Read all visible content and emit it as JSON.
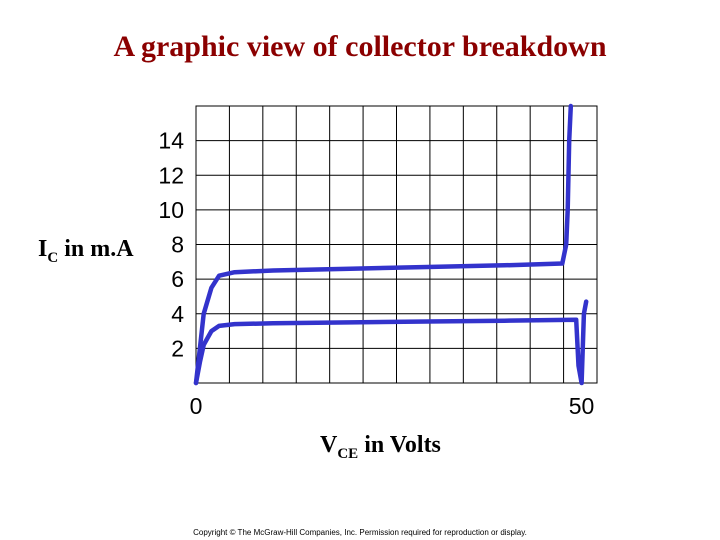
{
  "title": "A graphic view of collector breakdown",
  "copyright": "Copyright © The McGraw-Hill Companies, Inc. Permission required for reproduction or display.",
  "colors": {
    "title": "#8b0000",
    "curve": "#3333cc",
    "grid": "#000000"
  },
  "chart_data": {
    "type": "line",
    "title": "A graphic view of collector breakdown",
    "ylabel": {
      "main": "I",
      "sub": "C",
      "rest": " in m.A"
    },
    "xlabel": {
      "main": "V",
      "sub": "CE",
      "rest": " in Volts"
    },
    "yticks": [
      "14",
      "12",
      "10",
      "8",
      "6",
      "4",
      "2"
    ],
    "xticks": [
      "0",
      "50"
    ],
    "ylim": [
      0,
      16
    ],
    "xlim": [
      0,
      52
    ],
    "grid": true,
    "series": [
      {
        "x": [
          0,
          0.5,
          1,
          2,
          3,
          5,
          10,
          20,
          30,
          40,
          47.5,
          48,
          48.2,
          48.4,
          48.6
        ],
        "y": [
          0,
          2,
          4,
          5.5,
          6.2,
          6.4,
          6.5,
          6.6,
          6.7,
          6.8,
          6.9,
          8,
          10,
          14,
          16
        ]
      },
      {
        "x": [
          0,
          0.5,
          1,
          2,
          3,
          5,
          10,
          20,
          30,
          40,
          49.3,
          49.6,
          50,
          50.3,
          50.6
        ],
        "y": [
          0,
          1.2,
          2.2,
          3,
          3.3,
          3.4,
          3.45,
          3.5,
          3.55,
          3.6,
          3.65,
          1,
          0,
          4,
          4.7
        ]
      }
    ]
  }
}
